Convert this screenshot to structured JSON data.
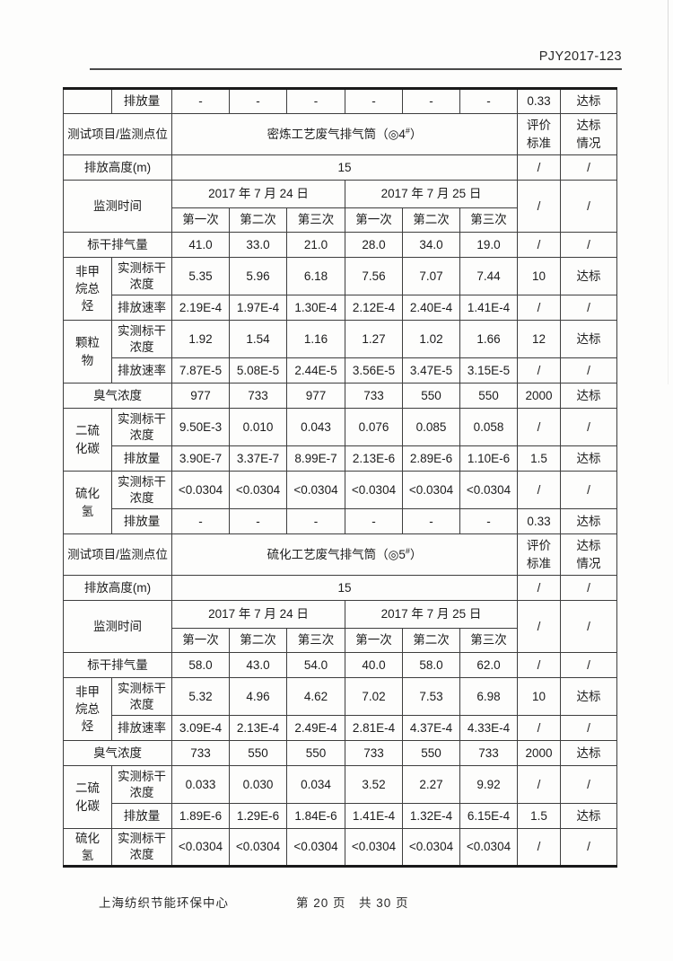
{
  "page": {
    "doc_number": "PJY2017-123"
  },
  "footer": {
    "organization": "上海纺织节能环保中心",
    "page_info": "第 20 页　共 30 页"
  },
  "table": {
    "rows": [
      {
        "h": "s",
        "cells": [
          {
            "t": ""
          },
          {
            "t": "排放量"
          },
          {
            "t": "-"
          },
          {
            "t": "-"
          },
          {
            "t": "-"
          },
          {
            "t": "-"
          },
          {
            "t": "-"
          },
          {
            "t": "-"
          },
          {
            "t": "0.33"
          },
          {
            "t": "达标"
          }
        ]
      },
      {
        "h": "x",
        "cells": [
          {
            "t": "测试项目/监测点位",
            "cs": 2
          },
          {
            "t": "密炼工艺废气排气筒（◎4#）",
            "cs": 6
          },
          {
            "t": "评价标准",
            "v": true
          },
          {
            "t": "达标情况",
            "v": true
          }
        ]
      },
      {
        "h": "s",
        "cells": [
          {
            "t": "排放高度(m)",
            "cs": 2
          },
          {
            "t": "15",
            "cs": 6
          },
          {
            "t": "/"
          },
          {
            "t": "/"
          }
        ]
      },
      {
        "h": "m",
        "cells": [
          {
            "t": "监测时间",
            "cs": 2,
            "rs": 2
          },
          {
            "t": "2017 年 7 月 24 日",
            "cs": 3
          },
          {
            "t": "2017 年 7 月 25 日",
            "cs": 3
          },
          {
            "t": "/",
            "rs": 2
          },
          {
            "t": "/",
            "rs": 2
          }
        ]
      },
      {
        "h": "t",
        "cells": [
          {
            "t": "第一次"
          },
          {
            "t": "第二次"
          },
          {
            "t": "第三次"
          },
          {
            "t": "第一次"
          },
          {
            "t": "第二次"
          },
          {
            "t": "第三次"
          }
        ]
      },
      {
        "h": "s",
        "cells": [
          {
            "t": "标干排气量",
            "cs": 2
          },
          {
            "t": "41.0"
          },
          {
            "t": "33.0"
          },
          {
            "t": "21.0"
          },
          {
            "t": "28.0"
          },
          {
            "t": "34.0"
          },
          {
            "t": "19.0"
          },
          {
            "t": "/"
          },
          {
            "t": "/"
          }
        ]
      },
      {
        "h": "d",
        "cells": [
          {
            "t": "非甲烷总烃",
            "rs": 2,
            "v": true
          },
          {
            "t": "实测标干浓度"
          },
          {
            "t": "5.35"
          },
          {
            "t": "5.96"
          },
          {
            "t": "6.18"
          },
          {
            "t": "7.56"
          },
          {
            "t": "7.07"
          },
          {
            "t": "7.44"
          },
          {
            "t": "10"
          },
          {
            "t": "达标"
          }
        ]
      },
      {
        "h": "s",
        "cells": [
          {
            "t": "排放速率"
          },
          {
            "t": "2.19E-4"
          },
          {
            "t": "1.97E-4"
          },
          {
            "t": "1.30E-4"
          },
          {
            "t": "2.12E-4"
          },
          {
            "t": "2.40E-4"
          },
          {
            "t": "1.41E-4"
          },
          {
            "t": "/"
          },
          {
            "t": "/"
          }
        ]
      },
      {
        "h": "d",
        "cells": [
          {
            "t": "颗粒物",
            "rs": 2,
            "v": true
          },
          {
            "t": "实测标干浓度"
          },
          {
            "t": "1.92"
          },
          {
            "t": "1.54"
          },
          {
            "t": "1.16"
          },
          {
            "t": "1.27"
          },
          {
            "t": "1.02"
          },
          {
            "t": "1.66"
          },
          {
            "t": "12"
          },
          {
            "t": "达标"
          }
        ]
      },
      {
        "h": "s",
        "cells": [
          {
            "t": "排放速率"
          },
          {
            "t": "7.87E-5"
          },
          {
            "t": "5.08E-5"
          },
          {
            "t": "2.44E-5"
          },
          {
            "t": "3.56E-5"
          },
          {
            "t": "3.47E-5"
          },
          {
            "t": "3.15E-5"
          },
          {
            "t": "/"
          },
          {
            "t": "/"
          }
        ]
      },
      {
        "h": "s",
        "cells": [
          {
            "t": "臭气浓度",
            "cs": 2
          },
          {
            "t": "977"
          },
          {
            "t": "733"
          },
          {
            "t": "977"
          },
          {
            "t": "733"
          },
          {
            "t": "550"
          },
          {
            "t": "550"
          },
          {
            "t": "2000"
          },
          {
            "t": "达标"
          }
        ]
      },
      {
        "h": "d",
        "cells": [
          {
            "t": "二硫化碳",
            "rs": 2,
            "v": true
          },
          {
            "t": "实测标干浓度"
          },
          {
            "t": "9.50E-3"
          },
          {
            "t": "0.010"
          },
          {
            "t": "0.043"
          },
          {
            "t": "0.076"
          },
          {
            "t": "0.085"
          },
          {
            "t": "0.058"
          },
          {
            "t": "/"
          },
          {
            "t": "/"
          }
        ]
      },
      {
        "h": "s",
        "cells": [
          {
            "t": "排放量"
          },
          {
            "t": "3.90E-7"
          },
          {
            "t": "3.37E-7"
          },
          {
            "t": "8.99E-7"
          },
          {
            "t": "2.13E-6"
          },
          {
            "t": "2.89E-6"
          },
          {
            "t": "1.10E-6"
          },
          {
            "t": "1.5"
          },
          {
            "t": "达标"
          }
        ]
      },
      {
        "h": "d",
        "cells": [
          {
            "t": "硫化氢",
            "rs": 2,
            "v": true
          },
          {
            "t": "实测标干浓度"
          },
          {
            "t": "<0.0304"
          },
          {
            "t": "<0.0304"
          },
          {
            "t": "<0.0304"
          },
          {
            "t": "<0.0304"
          },
          {
            "t": "<0.0304"
          },
          {
            "t": "<0.0304"
          },
          {
            "t": "/"
          },
          {
            "t": "/"
          }
        ]
      },
      {
        "h": "s",
        "cells": [
          {
            "t": "排放量"
          },
          {
            "t": "-"
          },
          {
            "t": "-"
          },
          {
            "t": "-"
          },
          {
            "t": "-"
          },
          {
            "t": "-"
          },
          {
            "t": "-"
          },
          {
            "t": "0.33"
          },
          {
            "t": "达标"
          }
        ]
      },
      {
        "h": "x",
        "cells": [
          {
            "t": "测试项目/监测点位",
            "cs": 2
          },
          {
            "t": "硫化工艺废气排气筒（◎5#）",
            "cs": 6
          },
          {
            "t": "评价标准",
            "v": true
          },
          {
            "t": "达标情况",
            "v": true
          }
        ]
      },
      {
        "h": "s",
        "cells": [
          {
            "t": "排放高度(m)",
            "cs": 2
          },
          {
            "t": "15",
            "cs": 6
          },
          {
            "t": "/"
          },
          {
            "t": "/"
          }
        ]
      },
      {
        "h": "m",
        "cells": [
          {
            "t": "监测时间",
            "cs": 2,
            "rs": 2
          },
          {
            "t": "2017 年 7 月 24 日",
            "cs": 3
          },
          {
            "t": "2017 年 7 月 25 日",
            "cs": 3
          },
          {
            "t": "/",
            "rs": 2
          },
          {
            "t": "/",
            "rs": 2
          }
        ]
      },
      {
        "h": "t",
        "cells": [
          {
            "t": "第一次"
          },
          {
            "t": "第二次"
          },
          {
            "t": "第三次"
          },
          {
            "t": "第一次"
          },
          {
            "t": "第二次"
          },
          {
            "t": "第三次"
          }
        ]
      },
      {
        "h": "s",
        "cells": [
          {
            "t": "标干排气量",
            "cs": 2
          },
          {
            "t": "58.0"
          },
          {
            "t": "43.0"
          },
          {
            "t": "54.0"
          },
          {
            "t": "40.0"
          },
          {
            "t": "58.0"
          },
          {
            "t": "62.0"
          },
          {
            "t": "/"
          },
          {
            "t": "/"
          }
        ]
      },
      {
        "h": "d",
        "cells": [
          {
            "t": "非甲烷总烃",
            "rs": 2,
            "v": true
          },
          {
            "t": "实测标干浓度"
          },
          {
            "t": "5.32"
          },
          {
            "t": "4.96"
          },
          {
            "t": "4.62"
          },
          {
            "t": "7.02"
          },
          {
            "t": "7.53"
          },
          {
            "t": "6.98"
          },
          {
            "t": "10"
          },
          {
            "t": "达标"
          }
        ]
      },
      {
        "h": "s",
        "cells": [
          {
            "t": "排放速率"
          },
          {
            "t": "3.09E-4"
          },
          {
            "t": "2.13E-4"
          },
          {
            "t": "2.49E-4"
          },
          {
            "t": "2.81E-4"
          },
          {
            "t": "4.37E-4"
          },
          {
            "t": "4.33E-4"
          },
          {
            "t": "/"
          },
          {
            "t": "/"
          }
        ]
      },
      {
        "h": "s",
        "cells": [
          {
            "t": "臭气浓度",
            "cs": 2
          },
          {
            "t": "733"
          },
          {
            "t": "550"
          },
          {
            "t": "550"
          },
          {
            "t": "733"
          },
          {
            "t": "550"
          },
          {
            "t": "733"
          },
          {
            "t": "2000"
          },
          {
            "t": "达标"
          }
        ]
      },
      {
        "h": "d",
        "cells": [
          {
            "t": "二硫化碳",
            "rs": 2,
            "v": true
          },
          {
            "t": "实测标干浓度"
          },
          {
            "t": "0.033"
          },
          {
            "t": "0.030"
          },
          {
            "t": "0.034"
          },
          {
            "t": "3.52"
          },
          {
            "t": "2.27"
          },
          {
            "t": "9.92"
          },
          {
            "t": "/"
          },
          {
            "t": "/"
          }
        ]
      },
      {
        "h": "s",
        "cells": [
          {
            "t": "排放量"
          },
          {
            "t": "1.89E-6"
          },
          {
            "t": "1.29E-6"
          },
          {
            "t": "1.84E-6"
          },
          {
            "t": "1.41E-4"
          },
          {
            "t": "1.32E-4"
          },
          {
            "t": "6.15E-4"
          },
          {
            "t": "1.5"
          },
          {
            "t": "达标"
          }
        ]
      },
      {
        "h": "d",
        "cells": [
          {
            "t": "硫化氢",
            "v": true
          },
          {
            "t": "实测标干浓度"
          },
          {
            "t": "<0.0304"
          },
          {
            "t": "<0.0304"
          },
          {
            "t": "<0.0304"
          },
          {
            "t": "<0.0304"
          },
          {
            "t": "<0.0304"
          },
          {
            "t": "<0.0304"
          },
          {
            "t": "/"
          },
          {
            "t": "/"
          }
        ]
      }
    ]
  }
}
